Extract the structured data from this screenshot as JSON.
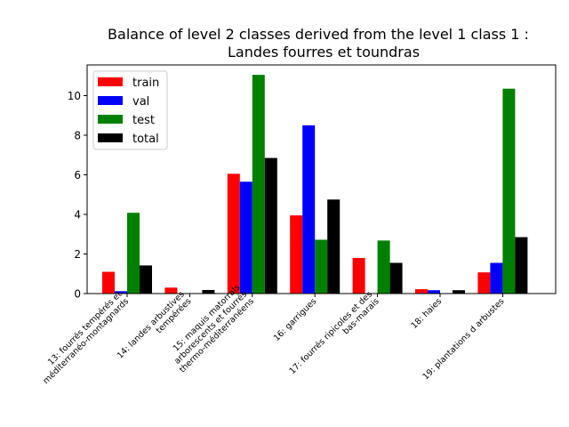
{
  "chart_data": {
    "type": "bar",
    "title_line1": "Balance of level 2 classes derived from the level 1 class 1 :",
    "title_line2": "Landes fourres et toundras",
    "xlabel": "",
    "ylabel": "",
    "ylim": [
      0,
      11.55
    ],
    "yticks": [
      0,
      2,
      4,
      6,
      8,
      10
    ],
    "legend_placement": "top-left",
    "grid": false,
    "categories": [
      [
        "13: fourrés tempérés et",
        "méditerranéo-montagnards"
      ],
      [
        "14: landes arbustives",
        "tempérées"
      ],
      [
        "15: maquis matorrals",
        "arborescents et fourrés",
        "thermo-méditerranéens"
      ],
      [
        "16: garrigues"
      ],
      [
        "17: fourrés ripicoles et des",
        "bas-marais"
      ],
      [
        "18: haies"
      ],
      [
        "19: plantations d arbustes"
      ]
    ],
    "series": [
      {
        "name": "train",
        "color": "#ff0000",
        "values": [
          1.1,
          0.3,
          6.05,
          3.95,
          1.8,
          0.22,
          1.07
        ]
      },
      {
        "name": "val",
        "color": "#0000ff",
        "values": [
          0.12,
          0.0,
          5.65,
          8.5,
          0.0,
          0.17,
          1.55
        ]
      },
      {
        "name": "test",
        "color": "#008000",
        "values": [
          4.08,
          0.0,
          11.05,
          2.72,
          2.68,
          0.0,
          10.35
        ]
      },
      {
        "name": "total",
        "color": "#000000",
        "values": [
          1.42,
          0.18,
          6.85,
          4.75,
          1.55,
          0.17,
          2.85
        ]
      }
    ]
  }
}
